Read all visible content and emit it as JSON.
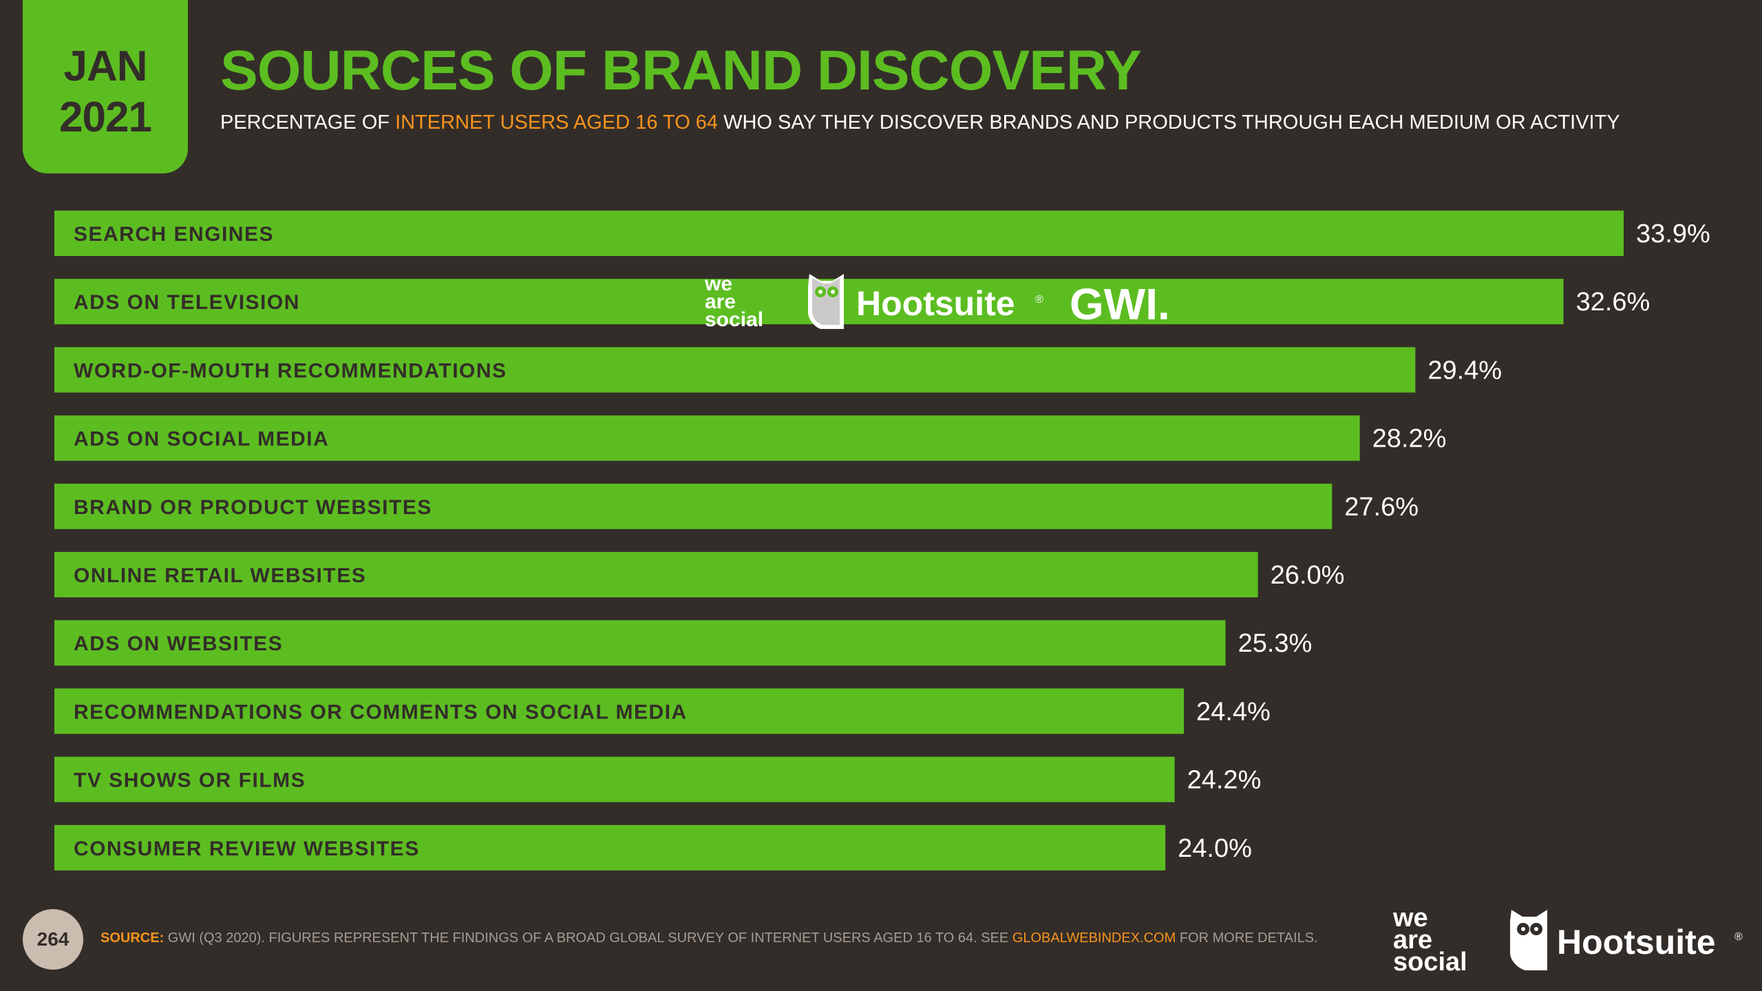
{
  "header": {
    "month": "JAN",
    "year": "2021",
    "title": "SOURCES OF BRAND DISCOVERY",
    "subtitle_pre": "PERCENTAGE OF ",
    "subtitle_highlight": "INTERNET USERS AGED 16 TO 64",
    "subtitle_post": " WHO SAY THEY DISCOVER BRANDS AND PRODUCTS THROUGH EACH MEDIUM OR ACTIVITY"
  },
  "colors": {
    "background": "#332d29",
    "accent": "#5cbd21",
    "highlight": "#f7941d",
    "text": "#ffffff"
  },
  "chart_data": {
    "type": "bar",
    "orientation": "horizontal",
    "title": "SOURCES OF BRAND DISCOVERY",
    "unit": "%",
    "xlim": [
      0,
      33.9
    ],
    "categories": [
      "SEARCH ENGINES",
      "ADS ON TELEVISION",
      "WORD-OF-MOUTH RECOMMENDATIONS",
      "ADS ON SOCIAL MEDIA",
      "BRAND OR PRODUCT WEBSITES",
      "ONLINE RETAIL WEBSITES",
      "ADS ON WEBSITES",
      "RECOMMENDATIONS OR COMMENTS ON SOCIAL MEDIA",
      "TV SHOWS OR FILMS",
      "CONSUMER REVIEW WEBSITES"
    ],
    "values": [
      33.9,
      32.6,
      29.4,
      28.2,
      27.6,
      26.0,
      25.3,
      24.4,
      24.2,
      24.0
    ],
    "value_labels": [
      "33.9%",
      "32.6%",
      "29.4%",
      "28.2%",
      "27.6%",
      "26.0%",
      "25.3%",
      "24.4%",
      "24.2%",
      "24.0%"
    ]
  },
  "logos": {
    "we_are_social": [
      "we",
      "are",
      "social"
    ],
    "hootsuite": "Hootsuite",
    "registered": "®",
    "gwi": "GWI."
  },
  "footer": {
    "page_number": "264",
    "source_label": "SOURCE:",
    "source_text": " GWI (Q3 2020). FIGURES REPRESENT THE FINDINGS OF A BROAD GLOBAL SURVEY OF INTERNET USERS AGED 16 TO 64. SEE ",
    "source_link": "GLOBALWEBINDEX.COM",
    "source_end": " FOR MORE DETAILS."
  }
}
